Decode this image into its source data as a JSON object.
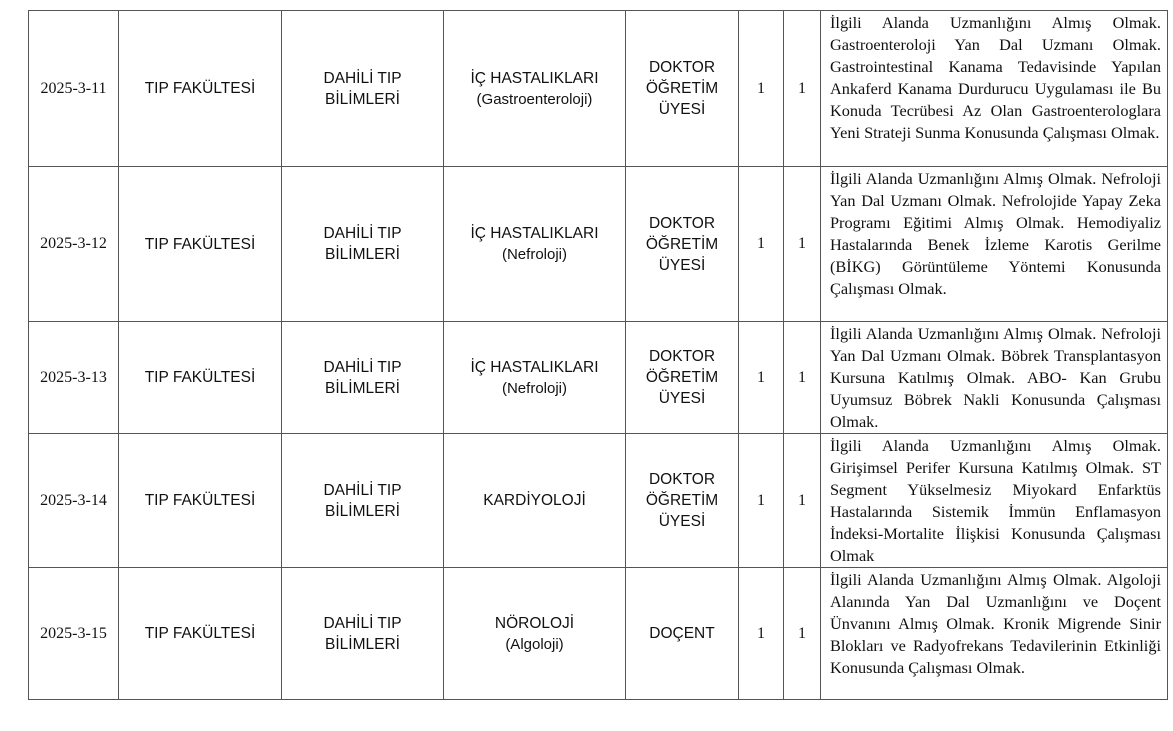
{
  "rows": [
    {
      "code": "2025-3-11",
      "faculty": "TIP FAKÜLTESİ",
      "division": "DAHİLİ TIP BİLİMLERİ",
      "department": "İÇ HASTALIKLARI",
      "subdepartment": "(Gastroenteroloji)",
      "title": "DOKTOR ÖĞRETİM ÜYESİ",
      "count_a": "1",
      "count_b": "1",
      "requirements": "İlgili Alanda Uzmanlığını Almış Olmak. Gastroenteroloji Yan Dal Uzmanı Olmak. Gastrointestinal Kanama Tedavisinde Yapılan Ankaferd Kanama Durdurucu Uygulaması ile Bu Konuda Tecrübesi Az Olan Gastroenterologlara Yeni Strateji Sunma Konusunda Çalışması Olmak."
    },
    {
      "code": "2025-3-12",
      "faculty": "TIP FAKÜLTESİ",
      "division": "DAHİLİ TIP BİLİMLERİ",
      "department": "İÇ HASTALIKLARI",
      "subdepartment": "(Nefroloji)",
      "title": "DOKTOR ÖĞRETİM ÜYESİ",
      "count_a": "1",
      "count_b": "1",
      "requirements": "İlgili Alanda Uzmanlığını Almış Olmak. Nefroloji Yan Dal Uzmanı Olmak. Nefrolojide Yapay Zeka Programı Eğitimi Almış Olmak. Hemodiyaliz Hastalarında Benek İzleme Karotis Gerilme (BİKG) Görüntüleme Yöntemi Konusunda Çalışması Olmak."
    },
    {
      "code": "2025-3-13",
      "faculty": "TIP FAKÜLTESİ",
      "division": "DAHİLİ TIP BİLİMLERİ",
      "department": "İÇ HASTALIKLARI",
      "subdepartment": "(Nefroloji)",
      "title": "DOKTOR ÖĞRETİM ÜYESİ",
      "count_a": "1",
      "count_b": "1",
      "requirements": "İlgili Alanda Uzmanlığını Almış Olmak. Nefroloji Yan Dal Uzmanı Olmak. Böbrek Transplantasyon Kursuna Katılmış Olmak. ABO- Kan Grubu Uyumsuz Böbrek Nakli Konusunda Çalışması Olmak."
    },
    {
      "code": "2025-3-14",
      "faculty": "TIP FAKÜLTESİ",
      "division": "DAHİLİ TIP BİLİMLERİ",
      "department": "KARDİYOLOJİ",
      "subdepartment": "",
      "title": "DOKTOR ÖĞRETİM ÜYESİ",
      "count_a": "1",
      "count_b": "1",
      "requirements": "İlgili Alanda Uzmanlığını Almış Olmak. Girişimsel Perifer Kursuna Katılmış Olmak. ST Segment Yükselmesiz Miyokard Enfarktüs Hastalarında Sistemik İmmün Enflamasyon İndeksi-Mortalite İlişkisi Konusunda Çalışması Olmak"
    },
    {
      "code": "2025-3-15",
      "faculty": "TIP FAKÜLTESİ",
      "division": "DAHİLİ TIP BİLİMLERİ",
      "department": "NÖROLOJİ",
      "subdepartment": "(Algoloji)",
      "title": "DOÇENT",
      "count_a": "1",
      "count_b": "1",
      "requirements": "İlgili Alanda Uzmanlığını Almış Olmak. Algoloji Alanında Yan Dal Uzmanlığını ve Doçent Ünvanını Almış Olmak. Kronik Migrende Sinir Blokları ve Radyofrekans Tedavilerinin Etkinliği Konusunda Çalışması Olmak."
    }
  ]
}
